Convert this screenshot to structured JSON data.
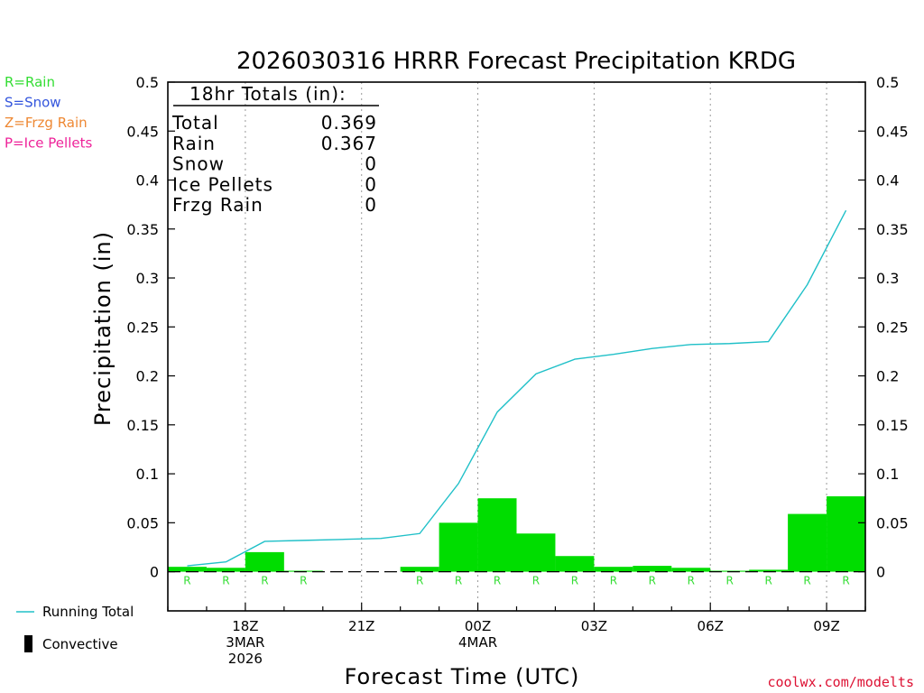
{
  "chart_data": {
    "type": "bar",
    "title": "2026030316 HRRR Forecast Precipitation KRDG",
    "ylabel": "Precipitation (in)",
    "xlabel": "Forecast Time (UTC)",
    "ylim": [
      -0.04,
      0.5
    ],
    "y_ticks": [
      0,
      0.05,
      0.1,
      0.15,
      0.2,
      0.25,
      0.3,
      0.35,
      0.4,
      0.45,
      0.5
    ],
    "y_tick_labels": [
      "0",
      "0.05",
      "0.1",
      "0.15",
      "0.2",
      "0.25",
      "0.3",
      "0.35",
      "0.4",
      "0.45",
      "0.5"
    ],
    "x_range_hours": [
      16.0,
      34.0
    ],
    "x_ticks": [
      {
        "hour": 18,
        "lines": [
          "18Z",
          "3MAR",
          "2026"
        ]
      },
      {
        "hour": 21,
        "lines": [
          "21Z"
        ]
      },
      {
        "hour": 24,
        "lines": [
          "00Z",
          "4MAR"
        ]
      },
      {
        "hour": 27,
        "lines": [
          "03Z"
        ]
      },
      {
        "hour": 30,
        "lines": [
          "06Z"
        ]
      },
      {
        "hour": 33,
        "lines": [
          "09Z"
        ]
      }
    ],
    "grid": "vertical dotted",
    "hourly_precip": [
      {
        "hour": 17,
        "value": 0.005,
        "type": "R"
      },
      {
        "hour": 18,
        "value": 0.004,
        "type": "R"
      },
      {
        "hour": 19,
        "value": 0.02,
        "type": "R"
      },
      {
        "hour": 20,
        "value": 0.001,
        "type": "R"
      },
      {
        "hour": 21,
        "value": 0.0,
        "type": ""
      },
      {
        "hour": 22,
        "value": 0.0,
        "type": ""
      },
      {
        "hour": 23,
        "value": 0.005,
        "type": "R"
      },
      {
        "hour": 24,
        "value": 0.05,
        "type": "R"
      },
      {
        "hour": 25,
        "value": 0.075,
        "type": "R"
      },
      {
        "hour": 26,
        "value": 0.039,
        "type": "R"
      },
      {
        "hour": 27,
        "value": 0.016,
        "type": "R"
      },
      {
        "hour": 28,
        "value": 0.005,
        "type": "R"
      },
      {
        "hour": 29,
        "value": 0.006,
        "type": "R"
      },
      {
        "hour": 30,
        "value": 0.004,
        "type": "R"
      },
      {
        "hour": 31,
        "value": 0.001,
        "type": "R"
      },
      {
        "hour": 32,
        "value": 0.002,
        "type": "R"
      },
      {
        "hour": 33,
        "value": 0.059,
        "type": "R"
      },
      {
        "hour": 34,
        "value": 0.077,
        "type": "R"
      }
    ],
    "running_total": {
      "name": "Running Total",
      "points": [
        [
          17,
          0.006
        ],
        [
          18,
          0.01
        ],
        [
          19,
          0.031
        ],
        [
          20,
          0.032
        ],
        [
          21,
          0.033
        ],
        [
          22,
          0.034
        ],
        [
          23,
          0.039
        ],
        [
          24,
          0.09
        ],
        [
          25,
          0.163
        ],
        [
          26,
          0.202
        ],
        [
          27,
          0.217
        ],
        [
          28,
          0.222
        ],
        [
          29,
          0.228
        ],
        [
          30,
          0.232
        ],
        [
          31,
          0.233
        ],
        [
          32,
          0.235
        ],
        [
          33,
          0.293
        ],
        [
          34,
          0.369
        ]
      ]
    },
    "colors": {
      "rain_bar": "#00dd00",
      "running_total": "#20c0c8",
      "rain": "#33dd33",
      "snow": "#3355dd",
      "frzg_rain": "#ee8833",
      "ice_pellets": "#ee2299",
      "convective": "#000000",
      "credit": "#dd1133"
    }
  },
  "totals_box": {
    "header": "18hr Totals (in):",
    "rows": [
      {
        "label": "Total",
        "value": "0.369"
      },
      {
        "label": "Rain",
        "value": "0.367"
      },
      {
        "label": "Snow",
        "value": "0"
      },
      {
        "label": "Ice Pellets",
        "value": "0"
      },
      {
        "label": "Frzg Rain",
        "value": "0"
      }
    ]
  },
  "ptype_legend": [
    {
      "text": "R=Rain",
      "color": "#33dd33"
    },
    {
      "text": "S=Snow",
      "color": "#3355dd"
    },
    {
      "text": "Z=Frzg Rain",
      "color": "#ee8833"
    },
    {
      "text": "P=Ice Pellets",
      "color": "#ee2299"
    }
  ],
  "line_legend": {
    "running_total": "Running Total",
    "convective": "Convective"
  },
  "credit": "coolwx.com/modelts"
}
